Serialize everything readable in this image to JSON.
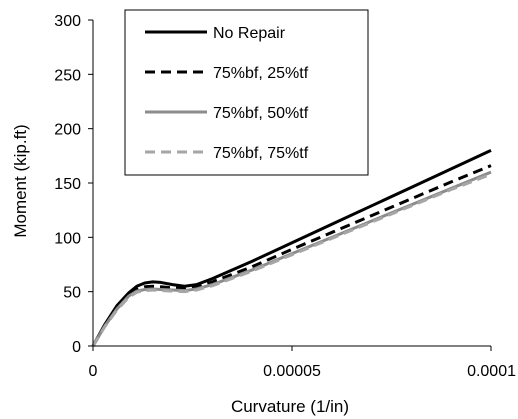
{
  "chart_data": {
    "type": "line",
    "xlabel": "Curvature (1/in)",
    "ylabel": "Moment (kip.ft)",
    "xlim": [
      0,
      0.0001
    ],
    "ylim": [
      0,
      300
    ],
    "x_ticks": [
      "0",
      "0.00005",
      "0.0001"
    ],
    "y_ticks": [
      "0",
      "50",
      "100",
      "150",
      "200",
      "250",
      "300"
    ],
    "grid": false,
    "legend_position": "top-left",
    "series": [
      {
        "name": "No Repair",
        "color": "#000000",
        "style": "solid",
        "points": [
          [
            0,
            0
          ],
          [
            3e-06,
            20
          ],
          [
            6e-06,
            37
          ],
          [
            9e-06,
            49
          ],
          [
            1.1e-05,
            55
          ],
          [
            1.3e-05,
            58
          ],
          [
            1.5e-05,
            59
          ],
          [
            1.7e-05,
            58.5
          ],
          [
            2e-05,
            56.5
          ],
          [
            2.3e-05,
            55
          ],
          [
            2.6e-05,
            56.5
          ],
          [
            3e-05,
            62
          ],
          [
            4e-05,
            78
          ],
          [
            5e-05,
            95
          ],
          [
            6e-05,
            112
          ],
          [
            7e-05,
            129
          ],
          [
            8e-05,
            146
          ],
          [
            9e-05,
            163
          ],
          [
            0.0001,
            180
          ]
        ]
      },
      {
        "name": "75%bf, 25%tf",
        "color": "#000000",
        "style": "dashed",
        "points": [
          [
            0,
            0
          ],
          [
            3e-06,
            19
          ],
          [
            6e-06,
            35
          ],
          [
            9e-06,
            47
          ],
          [
            1.1e-05,
            52
          ],
          [
            1.3e-05,
            54.5
          ],
          [
            1.5e-05,
            55
          ],
          [
            1.7e-05,
            54.5
          ],
          [
            2e-05,
            53.5
          ],
          [
            2.3e-05,
            53
          ],
          [
            2.6e-05,
            54.5
          ],
          [
            3e-05,
            59
          ],
          [
            4e-05,
            73
          ],
          [
            5e-05,
            89
          ],
          [
            6e-05,
            104.5
          ],
          [
            7e-05,
            120
          ],
          [
            8e-05,
            135.5
          ],
          [
            9e-05,
            151
          ],
          [
            0.0001,
            166
          ]
        ]
      },
      {
        "name": "75%bf, 50%tf",
        "color": "#8c8c8c",
        "style": "solid",
        "points": [
          [
            0,
            0
          ],
          [
            3e-06,
            18.5
          ],
          [
            6e-06,
            34
          ],
          [
            9e-06,
            46
          ],
          [
            1.1e-05,
            50.5
          ],
          [
            1.3e-05,
            52
          ],
          [
            1.5e-05,
            52.5
          ],
          [
            1.7e-05,
            52
          ],
          [
            2e-05,
            51.5
          ],
          [
            2.3e-05,
            51
          ],
          [
            2.6e-05,
            52.5
          ],
          [
            3e-05,
            56.5
          ],
          [
            4e-05,
            70
          ],
          [
            5e-05,
            85
          ],
          [
            6e-05,
            100
          ],
          [
            7e-05,
            115
          ],
          [
            8e-05,
            130
          ],
          [
            9e-05,
            145
          ],
          [
            0.0001,
            160
          ]
        ]
      },
      {
        "name": "75%bf, 75%tf",
        "color": "#a6a6a6",
        "style": "dashed",
        "points": [
          [
            0,
            0
          ],
          [
            3e-06,
            18
          ],
          [
            6e-06,
            33
          ],
          [
            9e-06,
            45
          ],
          [
            1.1e-05,
            49.5
          ],
          [
            1.3e-05,
            51
          ],
          [
            1.5e-05,
            51.5
          ],
          [
            1.7e-05,
            51
          ],
          [
            2e-05,
            50.5
          ],
          [
            2.3e-05,
            50
          ],
          [
            2.6e-05,
            51.5
          ],
          [
            3e-05,
            55.5
          ],
          [
            4e-05,
            69
          ],
          [
            5e-05,
            84
          ],
          [
            6e-05,
            99
          ],
          [
            7e-05,
            114
          ],
          [
            8e-05,
            129
          ],
          [
            9e-05,
            144
          ],
          [
            0.0001,
            158
          ]
        ]
      }
    ]
  }
}
